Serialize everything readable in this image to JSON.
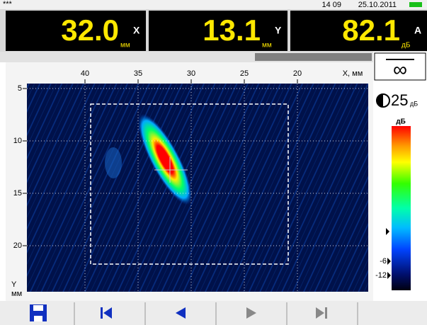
{
  "status": {
    "left": "***",
    "time": "14 09",
    "date": "25.10.2011"
  },
  "readouts": [
    {
      "value": "32.0",
      "unit": "мм",
      "icon": "X"
    },
    {
      "value": "13.1",
      "unit": "мм",
      "icon": "Y"
    },
    {
      "value": "82.1",
      "unit": "дБ",
      "icon": "A"
    }
  ],
  "x_axis": {
    "label": "X, мм",
    "ticks": [
      40,
      35,
      30,
      25,
      20
    ]
  },
  "y_axis": {
    "label": "Y",
    "unit": "мм",
    "ticks": [
      5,
      10,
      15,
      20
    ]
  },
  "gain": {
    "value": "25",
    "unit": "дБ"
  },
  "color_bar": {
    "title": "дБ",
    "marks": [
      "-6",
      "-12"
    ]
  }
}
